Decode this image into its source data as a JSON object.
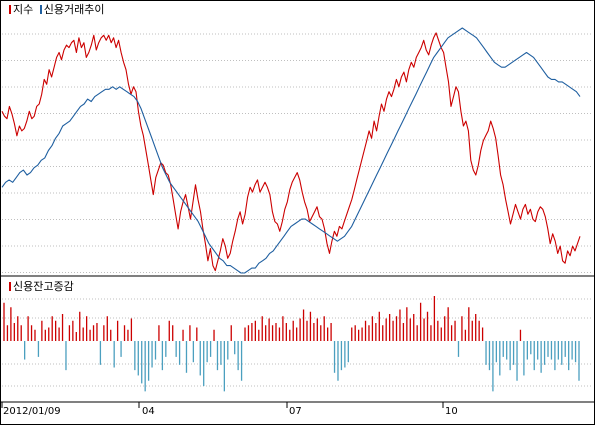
{
  "chart_data": [
    {
      "type": "line",
      "legend": [
        "지수",
        "신용거래추이"
      ],
      "colors": {
        "지수": "#cc0000",
        "신용거래추이": "#1f5fa0"
      },
      "x_ticks": [
        "2012/01/09",
        "04",
        "07",
        "10"
      ],
      "grid": true,
      "y_axis_labels": false,
      "series": [
        {
          "name": "지수",
          "values": [
            0.66,
            0.64,
            0.63,
            0.68,
            0.65,
            0.61,
            0.56,
            0.6,
            0.58,
            0.59,
            0.62,
            0.66,
            0.63,
            0.64,
            0.68,
            0.69,
            0.73,
            0.79,
            0.77,
            0.83,
            0.8,
            0.84,
            0.88,
            0.9,
            0.87,
            0.91,
            0.93,
            0.92,
            0.94,
            0.95,
            0.9,
            0.96,
            0.92,
            0.94,
            0.88,
            0.9,
            0.93,
            0.97,
            0.91,
            0.94,
            0.96,
            0.97,
            0.95,
            0.97,
            0.94,
            0.96,
            0.92,
            0.95,
            0.9,
            0.86,
            0.83,
            0.77,
            0.73,
            0.76,
            0.74,
            0.66,
            0.6,
            0.56,
            0.5,
            0.44,
            0.38,
            0.32,
            0.39,
            0.42,
            0.45,
            0.44,
            0.41,
            0.4,
            0.36,
            0.3,
            0.24,
            0.18,
            0.25,
            0.29,
            0.32,
            0.27,
            0.22,
            0.29,
            0.36,
            0.3,
            0.25,
            0.18,
            0.12,
            0.05,
            0.1,
            0.03,
            0.01,
            0.05,
            0.09,
            0.14,
            0.11,
            0.06,
            0.08,
            0.13,
            0.17,
            0.22,
            0.25,
            0.2,
            0.24,
            0.31,
            0.35,
            0.33,
            0.36,
            0.38,
            0.33,
            0.35,
            0.37,
            0.35,
            0.32,
            0.25,
            0.21,
            0.2,
            0.17,
            0.21,
            0.26,
            0.29,
            0.34,
            0.37,
            0.39,
            0.41,
            0.38,
            0.33,
            0.29,
            0.26,
            0.21,
            0.23,
            0.25,
            0.27,
            0.23,
            0.22,
            0.18,
            0.12,
            0.08,
            0.13,
            0.17,
            0.15,
            0.19,
            0.18,
            0.21,
            0.24,
            0.27,
            0.3,
            0.34,
            0.38,
            0.42,
            0.46,
            0.5,
            0.54,
            0.58,
            0.55,
            0.62,
            0.58,
            0.64,
            0.69,
            0.66,
            0.71,
            0.74,
            0.72,
            0.75,
            0.79,
            0.76,
            0.8,
            0.82,
            0.78,
            0.83,
            0.86,
            0.84,
            0.88,
            0.9,
            0.92,
            0.95,
            0.91,
            0.89,
            0.93,
            0.96,
            0.98,
            0.95,
            0.92,
            0.9,
            0.84,
            0.78,
            0.68,
            0.72,
            0.76,
            0.74,
            0.66,
            0.6,
            0.62,
            0.58,
            0.46,
            0.42,
            0.4,
            0.44,
            0.5,
            0.54,
            0.56,
            0.58,
            0.62,
            0.59,
            0.55,
            0.48,
            0.4,
            0.36,
            0.3,
            0.25,
            0.2,
            0.24,
            0.28,
            0.25,
            0.22,
            0.26,
            0.28,
            0.24,
            0.26,
            0.22,
            0.21,
            0.25,
            0.27,
            0.26,
            0.23,
            0.18,
            0.12,
            0.16,
            0.13,
            0.08,
            0.11,
            0.05,
            0.04,
            0.09,
            0.07,
            0.11,
            0.09,
            0.12,
            0.15
          ]
        },
        {
          "name": "신용거래추이",
          "values": [
            0.35,
            0.37,
            0.38,
            0.37,
            0.39,
            0.41,
            0.42,
            0.4,
            0.41,
            0.43,
            0.44,
            0.46,
            0.47,
            0.5,
            0.52,
            0.55,
            0.57,
            0.6,
            0.61,
            0.62,
            0.64,
            0.66,
            0.68,
            0.69,
            0.71,
            0.7,
            0.72,
            0.73,
            0.74,
            0.75,
            0.75,
            0.76,
            0.75,
            0.76,
            0.75,
            0.74,
            0.73,
            0.72,
            0.7,
            0.67,
            0.63,
            0.59,
            0.55,
            0.51,
            0.47,
            0.43,
            0.4,
            0.37,
            0.35,
            0.33,
            0.31,
            0.29,
            0.27,
            0.25,
            0.23,
            0.21,
            0.18,
            0.15,
            0.12,
            0.1,
            0.08,
            0.06,
            0.05,
            0.03,
            0.03,
            0.02,
            0.01,
            0.0,
            0.0,
            0.01,
            0.02,
            0.02,
            0.04,
            0.05,
            0.06,
            0.08,
            0.09,
            0.11,
            0.13,
            0.15,
            0.17,
            0.19,
            0.2,
            0.21,
            0.22,
            0.22,
            0.21,
            0.2,
            0.19,
            0.18,
            0.17,
            0.16,
            0.15,
            0.14,
            0.13,
            0.14,
            0.15,
            0.17,
            0.19,
            0.22,
            0.25,
            0.28,
            0.31,
            0.34,
            0.37,
            0.4,
            0.43,
            0.46,
            0.49,
            0.52,
            0.55,
            0.58,
            0.61,
            0.64,
            0.67,
            0.7,
            0.73,
            0.76,
            0.79,
            0.82,
            0.85,
            0.88,
            0.9,
            0.92,
            0.94,
            0.96,
            0.97,
            0.98,
            0.99,
            1.0,
            0.99,
            0.98,
            0.97,
            0.96,
            0.94,
            0.92,
            0.9,
            0.88,
            0.86,
            0.85,
            0.84,
            0.84,
            0.85,
            0.86,
            0.87,
            0.88,
            0.89,
            0.9,
            0.89,
            0.88,
            0.86,
            0.84,
            0.82,
            0.8,
            0.79,
            0.79,
            0.78,
            0.78,
            0.77,
            0.76,
            0.75,
            0.74,
            0.72
          ]
        }
      ]
    },
    {
      "type": "bar",
      "legend": [
        "신용잔고증감"
      ],
      "colors": {
        "positive": "#cc0000",
        "negative": "#4b9fbf"
      },
      "values": [
        0.85,
        0.35,
        0.75,
        0.4,
        0.55,
        0.35,
        -0.35,
        0.55,
        0.35,
        0.25,
        -0.3,
        0.45,
        0.25,
        0.3,
        0.55,
        0.45,
        0.3,
        0.6,
        -0.55,
        0.35,
        0.45,
        0.2,
        0.65,
        0.3,
        0.55,
        0.25,
        0.35,
        0.4,
        -0.45,
        0.35,
        0.55,
        0.25,
        -0.5,
        0.45,
        -0.3,
        0.35,
        0.25,
        0.5,
        -0.55,
        -0.65,
        -0.8,
        -0.95,
        -0.75,
        -0.5,
        -0.35,
        0.35,
        -0.55,
        -0.3,
        0.45,
        0.35,
        -0.3,
        -0.45,
        0.25,
        -0.6,
        0.35,
        -0.4,
        0.3,
        -0.65,
        -0.85,
        -0.4,
        -0.3,
        0.25,
        -0.55,
        -0.45,
        -0.95,
        -0.35,
        0.35,
        -0.25,
        -0.55,
        -0.75,
        0.3,
        0.35,
        0.4,
        0.45,
        0.25,
        0.55,
        0.35,
        0.5,
        0.35,
        0.4,
        0.3,
        0.55,
        0.4,
        0.25,
        0.45,
        0.3,
        0.5,
        0.7,
        0.45,
        0.65,
        0.4,
        0.5,
        0.35,
        0.55,
        0.3,
        0.4,
        -0.6,
        -0.75,
        -0.55,
        -0.5,
        -0.4,
        0.3,
        0.35,
        0.25,
        0.3,
        0.45,
        0.35,
        0.55,
        0.4,
        0.65,
        0.35,
        0.5,
        0.6,
        0.45,
        0.55,
        0.7,
        0.4,
        0.75,
        0.5,
        0.6,
        0.35,
        0.85,
        0.5,
        0.65,
        0.35,
        1.0,
        0.45,
        0.3,
        0.55,
        0.75,
        0.35,
        0.45,
        -0.3,
        0.55,
        0.25,
        0.75,
        0.45,
        0.6,
        0.45,
        0.3,
        -0.45,
        -0.55,
        -0.95,
        -0.4,
        -0.65,
        -0.3,
        -0.35,
        -0.55,
        -0.45,
        -0.75,
        0.25,
        -0.65,
        -0.35,
        -0.25,
        -0.55,
        -0.35,
        -0.6,
        -0.45,
        -0.3,
        -0.35,
        -0.55,
        -0.35,
        -0.45,
        -0.3,
        -0.55,
        -0.35,
        -0.4,
        -0.75
      ]
    }
  ]
}
